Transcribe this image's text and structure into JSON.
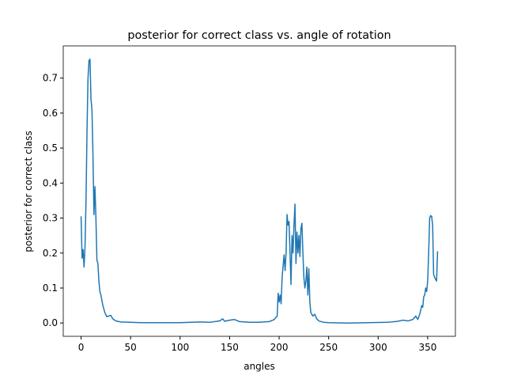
{
  "chart_data": {
    "type": "line",
    "title": "posterior for correct class vs. angle of rotation",
    "x_label": "angles",
    "y_label": "posterior for correct class",
    "color": "#1f77b4",
    "x": [
      0,
      1,
      2,
      3,
      4,
      5,
      6,
      7,
      8,
      9,
      10,
      11,
      12,
      13,
      14,
      15,
      16,
      17,
      18,
      19,
      20,
      22,
      24,
      26,
      28,
      30,
      32,
      35,
      40,
      50,
      60,
      80,
      100,
      120,
      130,
      140,
      143,
      145,
      150,
      155,
      160,
      170,
      180,
      190,
      195,
      198,
      199,
      200,
      201,
      202,
      203,
      205,
      206,
      207,
      208,
      209,
      210,
      211,
      212,
      213,
      214,
      215,
      216,
      217,
      218,
      219,
      220,
      221,
      222,
      223,
      224,
      225,
      226,
      227,
      228,
      229,
      230,
      231,
      232,
      234,
      236,
      238,
      240,
      245,
      250,
      270,
      290,
      310,
      320,
      325,
      330,
      335,
      338,
      340,
      342,
      344,
      345,
      346,
      347,
      348,
      349,
      350,
      351,
      352,
      353,
      354,
      355,
      356,
      357,
      358,
      359,
      360
    ],
    "values": [
      0.305,
      0.185,
      0.21,
      0.16,
      0.22,
      0.35,
      0.55,
      0.7,
      0.75,
      0.754,
      0.64,
      0.61,
      0.48,
      0.31,
      0.39,
      0.3,
      0.18,
      0.17,
      0.12,
      0.09,
      0.08,
      0.05,
      0.03,
      0.018,
      0.02,
      0.022,
      0.012,
      0.006,
      0.003,
      0.002,
      0.001,
      0.001,
      0.001,
      0.003,
      0.002,
      0.006,
      0.012,
      0.005,
      0.008,
      0.01,
      0.004,
      0.002,
      0.002,
      0.004,
      0.01,
      0.02,
      0.085,
      0.06,
      0.08,
      0.055,
      0.13,
      0.195,
      0.15,
      0.2,
      0.31,
      0.28,
      0.29,
      0.2,
      0.11,
      0.25,
      0.2,
      0.28,
      0.34,
      0.17,
      0.26,
      0.2,
      0.25,
      0.19,
      0.27,
      0.285,
      0.2,
      0.13,
      0.1,
      0.12,
      0.16,
      0.08,
      0.155,
      0.06,
      0.03,
      0.02,
      0.025,
      0.012,
      0.006,
      0.002,
      0.001,
      0.0,
      0.001,
      0.002,
      0.005,
      0.008,
      0.006,
      0.01,
      0.02,
      0.01,
      0.025,
      0.05,
      0.045,
      0.075,
      0.08,
      0.1,
      0.09,
      0.12,
      0.2,
      0.3,
      0.307,
      0.305,
      0.28,
      0.14,
      0.13,
      0.125,
      0.12,
      0.205
    ],
    "xlim": [
      -18,
      378
    ],
    "ylim": [
      -0.038,
      0.792
    ],
    "xticks": [
      0,
      50,
      100,
      150,
      200,
      250,
      300,
      350
    ],
    "yticks": [
      {
        "value": 0,
        "label": "0.0"
      },
      0.1,
      0.2,
      0.3,
      0.4,
      0.5,
      0.6,
      0.7
    ]
  }
}
